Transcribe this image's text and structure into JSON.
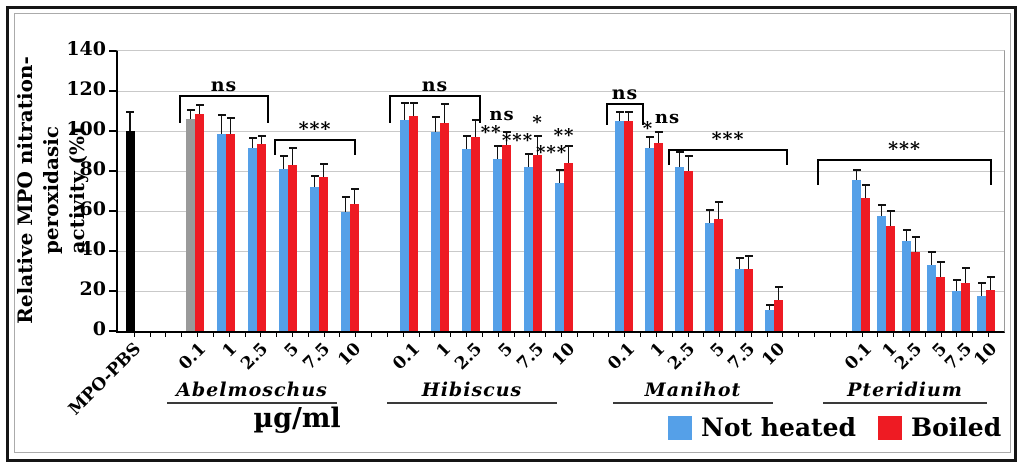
{
  "figure": {
    "y_axis_title_line1": "Relative MPO nitration-peroxidasic",
    "y_axis_title_line2": "activity (%)"
  },
  "chart_data": {
    "type": "bar",
    "ylabel": "Relative MPO nitration-peroxidasic activity (%)",
    "xlabel": "µg/ml",
    "ylim": [
      0,
      140
    ],
    "yticks": [
      0,
      20,
      40,
      60,
      80,
      100,
      120,
      140
    ],
    "grid": "horizontal",
    "categories": [
      "0.1",
      "1",
      "2.5",
      "5",
      "7.5",
      "10"
    ],
    "control": {
      "label": "MPO-PBS",
      "value": 100,
      "error": 10
    },
    "legend": [
      {
        "label": "Not heated",
        "color": "#55A0E8"
      },
      {
        "label": "Boiled",
        "color": "#EE1B23"
      }
    ],
    "colors": {
      "not_heated": "#55A0E8",
      "boiled": "#EE1B23",
      "control": "#000000",
      "abelmoschus_first_not_heated_bar": "#9A9A9A",
      "gridline": "#C9C9C9"
    },
    "groups": [
      {
        "name": "Abelmoschus",
        "series": [
          {
            "name": "Not heated",
            "values": [
              106,
              98.5,
              91.5,
              81,
              72,
              59.5
            ],
            "errors": [
              5,
              10,
              5.5,
              7,
              6,
              8
            ]
          },
          {
            "name": "Boiled",
            "values": [
              108.5,
              98.5,
              93.5,
              83,
              77,
              63.5
            ],
            "errors": [
              5,
              8.5,
              4.5,
              9,
              7,
              8
            ]
          }
        ],
        "annotations": {
          "brackets": [
            {
              "from": 0,
              "to": 2,
              "label": "ns",
              "y": 118,
              "leg": 28,
              "padl": 16,
              "padr": 12
            },
            {
              "from": 3,
              "to": 5,
              "label": "***",
              "y": 96,
              "leg": 16,
              "padl": 14,
              "padr": 6
            }
          ],
          "texts": []
        }
      },
      {
        "name": "Hibiscus",
        "series": [
          {
            "name": "Not heated",
            "values": [
              105.5,
              99.5,
              91,
              86,
              82,
              74
            ],
            "errors": [
              9,
              8,
              7,
              7,
              7,
              7
            ]
          },
          {
            "name": "Boiled",
            "values": [
              107.5,
              104,
              97,
              93,
              88,
              84
            ],
            "errors": [
              7,
              10,
              9,
              7,
              10,
              9
            ]
          }
        ],
        "annotations": {
          "brackets": [
            {
              "from": 0,
              "to": 2,
              "label": "ns",
              "y": 118,
              "leg": 28,
              "padl": 20,
              "padr": 10
            }
          ],
          "texts": [
            {
              "at": 3,
              "y": 104,
              "label": "ns"
            },
            {
              "at": 2.65,
              "y": 95,
              "label": "**"
            },
            {
              "at": 3.5,
              "y": 91,
              "label": "***"
            },
            {
              "at": 4.15,
              "y": 100,
              "label": "*"
            },
            {
              "at": 4.6,
              "y": 85,
              "label": "***"
            },
            {
              "at": 5,
              "y": 93.5,
              "label": "**"
            }
          ]
        }
      },
      {
        "name": "Manihot",
        "series": [
          {
            "name": "Not heated",
            "values": [
              105,
              91.5,
              82,
              54,
              31,
              10.5
            ],
            "errors": [
              5,
              6,
              8,
              7,
              6,
              3
            ]
          },
          {
            "name": "Boiled",
            "values": [
              105,
              94,
              80,
              56,
              31,
              15.5
            ],
            "errors": [
              5,
              6,
              8,
              9,
              7,
              7
            ]
          }
        ],
        "annotations": {
          "brackets": [
            {
              "from": 0,
              "to": 1,
              "label": "ns",
              "y": 114,
              "leg": 22,
              "padl": 18,
              "padr": -10
            },
            {
              "from": 2,
              "to": 5,
              "label": "***",
              "y": 91,
              "leg": 16,
              "padl": 16,
              "padr": 14
            }
          ],
          "texts": [
            {
              "at": 0.8,
              "y": 97,
              "label": "*"
            },
            {
              "at": 1.45,
              "y": 102.5,
              "label": "ns"
            }
          ]
        }
      },
      {
        "name": "Pteridium",
        "series": [
          {
            "name": "Not heated",
            "values": [
              75.5,
              57.5,
              45,
              33,
              20,
              17.5
            ],
            "errors": [
              5.5,
              6,
              6,
              7,
              6,
              7
            ]
          },
          {
            "name": "Boiled",
            "values": [
              66.5,
              52.5,
              39.5,
              27,
              24,
              20.5
            ],
            "errors": [
              7,
              8,
              8,
              8,
              8,
              7
            ]
          }
        ],
        "annotations": {
          "brackets": [
            {
              "from": 0,
              "to": 5,
              "label": "***",
              "y": 86,
              "leg": 26,
              "padl": 44,
              "padr": 6
            }
          ],
          "texts": []
        }
      }
    ]
  }
}
